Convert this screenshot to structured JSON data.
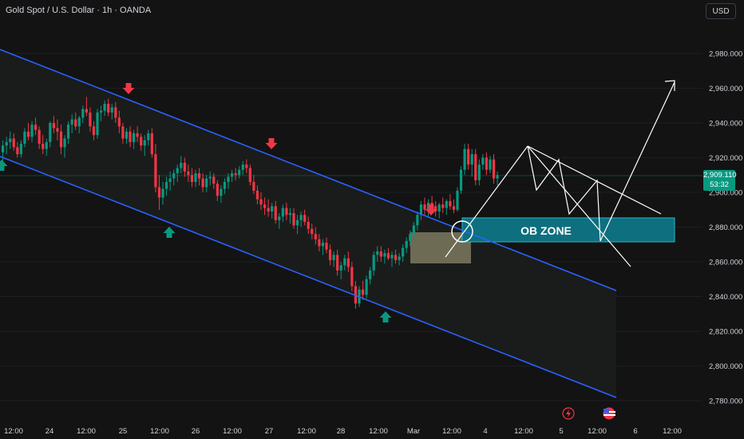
{
  "header": {
    "title": "Gold Spot / U.S. Dollar · 1h · OANDA"
  },
  "currency_button": "USD",
  "price_tag": {
    "price": "2,909.110",
    "countdown": "53:32"
  },
  "colors": {
    "background": "#131313",
    "bullish": "#089981",
    "bearish": "#f23645",
    "channel": "#2962ff",
    "ob_zone_fill": "#0e6f7e",
    "order_block": "#9a9673",
    "pattern_lines": "#ffffff"
  },
  "icons": [
    "lightning-icon",
    "us-flag-icon"
  ],
  "chart_data": {
    "type": "candlestick",
    "symbol": "XAUUSD",
    "interval": "1h",
    "ylim": [
      2770,
      2995
    ],
    "y_ticks": [
      2780,
      2800,
      2820,
      2840,
      2860,
      2880,
      2900,
      2920,
      2940,
      2960,
      2980
    ],
    "y_tick_labels": [
      "2,780.000",
      "2,800.000",
      "2,820.000",
      "2,840.000",
      "2,860.000",
      "2,880.000",
      "2,900.000",
      "2,920.000",
      "2,940.000",
      "2,960.000",
      "2,980.000"
    ],
    "x_tick_labels": [
      "12:00",
      "24",
      "12:00",
      "25",
      "12:00",
      "26",
      "12:00",
      "27",
      "12:00",
      "28",
      "12:00",
      "Mar",
      "12:00",
      "4",
      "12:00",
      "5",
      "12:00",
      "6",
      "12:00"
    ],
    "current_price": 2909.11,
    "ohlc": [
      [
        2923,
        2930,
        2918,
        2927
      ],
      [
        2927,
        2932,
        2922,
        2929
      ],
      [
        2929,
        2935,
        2925,
        2931
      ],
      [
        2931,
        2934,
        2924,
        2926
      ],
      [
        2926,
        2929,
        2920,
        2922
      ],
      [
        2922,
        2930,
        2920,
        2928
      ],
      [
        2928,
        2937,
        2926,
        2935
      ],
      [
        2935,
        2940,
        2930,
        2932
      ],
      [
        2932,
        2941,
        2929,
        2939
      ],
      [
        2939,
        2943,
        2933,
        2936
      ],
      [
        2936,
        2938,
        2925,
        2928
      ],
      [
        2928,
        2933,
        2922,
        2925
      ],
      [
        2925,
        2931,
        2921,
        2929
      ],
      [
        2929,
        2941,
        2926,
        2940
      ],
      [
        2940,
        2944,
        2934,
        2937
      ],
      [
        2937,
        2942,
        2930,
        2935
      ],
      [
        2935,
        2939,
        2922,
        2926
      ],
      [
        2926,
        2933,
        2920,
        2931
      ],
      [
        2931,
        2941,
        2928,
        2939
      ],
      [
        2939,
        2945,
        2934,
        2942
      ],
      [
        2942,
        2946,
        2936,
        2938
      ],
      [
        2938,
        2944,
        2934,
        2943
      ],
      [
        2943,
        2950,
        2940,
        2948
      ],
      [
        2948,
        2955,
        2944,
        2946
      ],
      [
        2946,
        2949,
        2935,
        2938
      ],
      [
        2938,
        2941,
        2930,
        2933
      ],
      [
        2933,
        2948,
        2931,
        2946
      ],
      [
        2946,
        2950,
        2941,
        2947
      ],
      [
        2947,
        2953,
        2944,
        2951
      ],
      [
        2951,
        2954,
        2944,
        2946
      ],
      [
        2946,
        2951,
        2942,
        2949
      ],
      [
        2949,
        2952,
        2940,
        2943
      ],
      [
        2943,
        2947,
        2934,
        2938
      ],
      [
        2938,
        2940,
        2928,
        2931
      ],
      [
        2931,
        2937,
        2928,
        2935
      ],
      [
        2935,
        2938,
        2926,
        2929
      ],
      [
        2929,
        2936,
        2925,
        2934
      ],
      [
        2934,
        2938,
        2929,
        2932
      ],
      [
        2932,
        2934,
        2924,
        2927
      ],
      [
        2927,
        2933,
        2921,
        2930
      ],
      [
        2930,
        2936,
        2927,
        2934
      ],
      [
        2934,
        2937,
        2920,
        2922
      ],
      [
        2922,
        2928,
        2900,
        2903
      ],
      [
        2903,
        2910,
        2890,
        2897
      ],
      [
        2897,
        2906,
        2893,
        2902
      ],
      [
        2902,
        2909,
        2898,
        2906
      ],
      [
        2906,
        2912,
        2901,
        2908
      ],
      [
        2908,
        2913,
        2904,
        2911
      ],
      [
        2911,
        2916,
        2906,
        2914
      ],
      [
        2914,
        2921,
        2911,
        2917
      ],
      [
        2917,
        2920,
        2909,
        2912
      ],
      [
        2912,
        2916,
        2906,
        2910
      ],
      [
        2910,
        2914,
        2903,
        2906
      ],
      [
        2906,
        2913,
        2903,
        2911
      ],
      [
        2911,
        2914,
        2904,
        2908
      ],
      [
        2908,
        2911,
        2900,
        2903
      ],
      [
        2903,
        2910,
        2900,
        2908
      ],
      [
        2908,
        2912,
        2904,
        2909
      ],
      [
        2909,
        2911,
        2902,
        2905
      ],
      [
        2905,
        2907,
        2895,
        2898
      ],
      [
        2898,
        2904,
        2894,
        2902
      ],
      [
        2902,
        2908,
        2899,
        2906
      ],
      [
        2906,
        2911,
        2902,
        2909
      ],
      [
        2909,
        2913,
        2906,
        2911
      ],
      [
        2911,
        2914,
        2907,
        2910
      ],
      [
        2910,
        2915,
        2908,
        2913
      ],
      [
        2913,
        2918,
        2910,
        2916
      ],
      [
        2916,
        2919,
        2911,
        2914
      ],
      [
        2914,
        2916,
        2904,
        2906
      ],
      [
        2906,
        2910,
        2899,
        2901
      ],
      [
        2901,
        2904,
        2893,
        2896
      ],
      [
        2896,
        2900,
        2890,
        2893
      ],
      [
        2893,
        2897,
        2887,
        2891
      ],
      [
        2891,
        2896,
        2886,
        2889
      ],
      [
        2889,
        2894,
        2885,
        2892
      ],
      [
        2892,
        2895,
        2882,
        2884
      ],
      [
        2884,
        2888,
        2879,
        2886
      ],
      [
        2886,
        2893,
        2883,
        2891
      ],
      [
        2891,
        2894,
        2884,
        2887
      ],
      [
        2887,
        2891,
        2882,
        2888
      ],
      [
        2888,
        2891,
        2879,
        2881
      ],
      [
        2881,
        2887,
        2876,
        2884
      ],
      [
        2884,
        2889,
        2880,
        2887
      ],
      [
        2887,
        2890,
        2881,
        2883
      ],
      [
        2883,
        2886,
        2876,
        2879
      ],
      [
        2879,
        2882,
        2873,
        2876
      ],
      [
        2876,
        2880,
        2870,
        2873
      ],
      [
        2873,
        2876,
        2866,
        2869
      ],
      [
        2869,
        2873,
        2864,
        2871
      ],
      [
        2871,
        2874,
        2865,
        2867
      ],
      [
        2867,
        2870,
        2858,
        2861
      ],
      [
        2861,
        2866,
        2857,
        2864
      ],
      [
        2864,
        2867,
        2852,
        2855
      ],
      [
        2855,
        2860,
        2850,
        2858
      ],
      [
        2858,
        2864,
        2855,
        2862
      ],
      [
        2862,
        2866,
        2854,
        2857
      ],
      [
        2857,
        2860,
        2843,
        2846
      ],
      [
        2846,
        2849,
        2833,
        2836
      ],
      [
        2836,
        2846,
        2834,
        2844
      ],
      [
        2844,
        2849,
        2838,
        2841
      ],
      [
        2841,
        2852,
        2839,
        2850
      ],
      [
        2850,
        2857,
        2847,
        2855
      ],
      [
        2855,
        2866,
        2852,
        2864
      ],
      [
        2864,
        2869,
        2860,
        2866
      ],
      [
        2866,
        2869,
        2860,
        2863
      ],
      [
        2863,
        2867,
        2859,
        2865
      ],
      [
        2865,
        2868,
        2861,
        2862
      ],
      [
        2862,
        2866,
        2857,
        2864
      ],
      [
        2864,
        2867,
        2859,
        2861
      ],
      [
        2861,
        2865,
        2858,
        2863
      ],
      [
        2863,
        2870,
        2860,
        2868
      ],
      [
        2868,
        2874,
        2865,
        2872
      ],
      [
        2872,
        2878,
        2869,
        2876
      ],
      [
        2876,
        2883,
        2873,
        2881
      ],
      [
        2881,
        2889,
        2878,
        2887
      ],
      [
        2887,
        2895,
        2884,
        2893
      ],
      [
        2893,
        2897,
        2887,
        2890
      ],
      [
        2890,
        2896,
        2886,
        2894
      ],
      [
        2894,
        2898,
        2889,
        2892
      ],
      [
        2892,
        2895,
        2886,
        2889
      ],
      [
        2889,
        2894,
        2885,
        2893
      ],
      [
        2893,
        2897,
        2888,
        2891
      ],
      [
        2891,
        2896,
        2887,
        2895
      ],
      [
        2895,
        2899,
        2890,
        2892
      ],
      [
        2892,
        2896,
        2888,
        2890
      ],
      [
        2890,
        2903,
        2889,
        2901
      ],
      [
        2901,
        2915,
        2899,
        2913
      ],
      [
        2913,
        2928,
        2910,
        2925
      ],
      [
        2925,
        2928,
        2913,
        2916
      ],
      [
        2916,
        2925,
        2909,
        2922
      ],
      [
        2922,
        2925,
        2904,
        2907
      ],
      [
        2907,
        2919,
        2904,
        2916
      ],
      [
        2916,
        2922,
        2913,
        2920
      ],
      [
        2920,
        2923,
        2910,
        2913
      ],
      [
        2913,
        2921,
        2911,
        2919
      ],
      [
        2919,
        2922,
        2905,
        2908
      ],
      [
        2908,
        2912,
        2904,
        2910
      ]
    ],
    "annotations": [
      "OB ZONE"
    ]
  }
}
